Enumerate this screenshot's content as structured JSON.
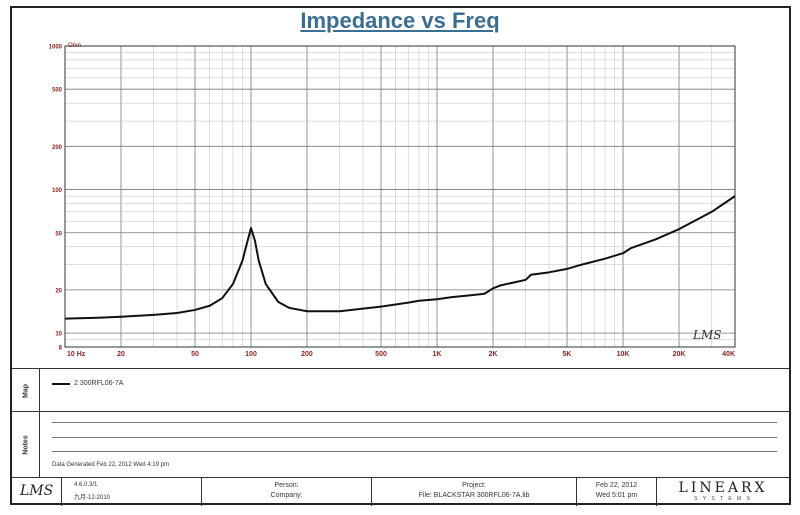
{
  "chart_data": {
    "type": "line",
    "title": "Impedance vs Freq",
    "ylabel": "Ohm",
    "xscale": "log",
    "yscale": "log",
    "xlim": [
      10,
      40000
    ],
    "ylim": [
      8,
      1000
    ],
    "grid": true,
    "xticks": [
      10,
      20,
      50,
      100,
      200,
      500,
      1000,
      2000,
      5000,
      10000,
      20000,
      40000
    ],
    "xtick_labels": [
      "10  Hz",
      "20",
      "50",
      "100",
      "200",
      "500",
      "1K",
      "2K",
      "5K",
      "10K",
      "20K",
      "40K"
    ],
    "yticks": [
      8,
      10,
      20,
      50,
      100,
      200,
      500,
      1000
    ],
    "ytick_labels": [
      "8",
      "10",
      "20",
      "50",
      "100",
      "200",
      "500",
      "1000"
    ],
    "watermark": "LMS",
    "series": [
      {
        "name": "2  300RFL06-7A",
        "color": "#111111",
        "x": [
          10,
          15,
          20,
          30,
          40,
          50,
          60,
          70,
          80,
          90,
          95,
          100,
          105,
          110,
          120,
          140,
          160,
          200,
          300,
          400,
          500,
          700,
          800,
          1000,
          1200,
          1500,
          1800,
          2000,
          2200,
          2500,
          3000,
          3200,
          4000,
          5000,
          6000,
          8000,
          10000,
          11000,
          15000,
          20000,
          30000,
          40000
        ],
        "y": [
          12.6,
          12.8,
          13,
          13.4,
          13.8,
          14.5,
          15.5,
          17.5,
          22,
          32,
          42,
          54,
          44,
          32,
          22,
          16.5,
          15,
          14.2,
          14.2,
          14.8,
          15.3,
          16.3,
          16.8,
          17.2,
          17.8,
          18.3,
          18.8,
          20.5,
          21.5,
          22.3,
          23.5,
          25.5,
          26.5,
          28,
          30,
          33,
          36,
          39,
          45,
          53,
          70,
          90
        ]
      }
    ]
  },
  "legend_panel": {
    "label": "Map",
    "entry": "2  300RFL06-7A"
  },
  "notes_panel": {
    "label": "Notes",
    "date_line": "Data Generated  Feb 22, 2012  Wed  4:19 pm"
  },
  "footer": {
    "logo": "LMS",
    "version": "4.6.0.3/1",
    "version_date": "九月-12-2010",
    "person_label": "Person:",
    "company_label": "Company:",
    "project_label": "Project:",
    "file_line": "File: BLACKSTAR 300RFL06-7A.lib",
    "date": "Feb 22, 2012",
    "time": "Wed  5:01 pm",
    "brand": "LINEARX",
    "brand_sub": "S Y S T E M S"
  },
  "colors": {
    "title": "#3a6f91",
    "tick_labels": "#8a1f1f",
    "grid_major": "#777777",
    "grid_minor": "#bbbbbb",
    "curve": "#111111"
  }
}
